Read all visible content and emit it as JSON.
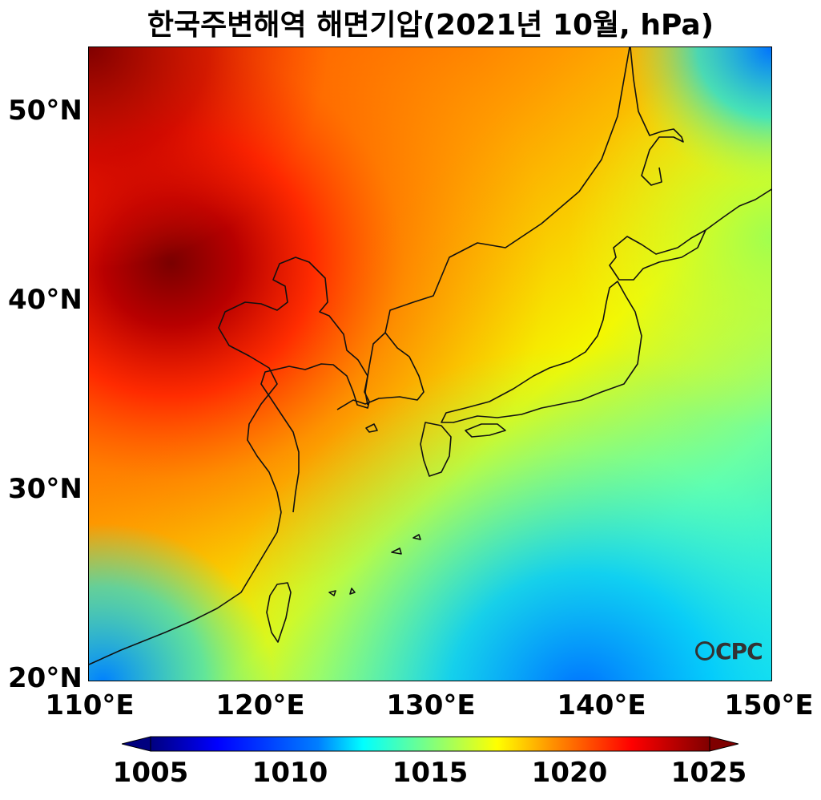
{
  "title": "한국주변해역 해면기압(2021년 10월, hPa)",
  "map": {
    "lon_range": [
      110,
      150
    ],
    "lat_range": [
      20,
      53.5
    ],
    "variable": "sea level pressure",
    "unit": "hPa"
  },
  "axes": {
    "lat_ticks": [
      "20°N",
      "30°N",
      "40°N",
      "50°N"
    ],
    "lon_ticks": [
      "110°E",
      "120°E",
      "130°E",
      "140°E",
      "150°E"
    ]
  },
  "colorbar": {
    "min": 1005,
    "max": 1025,
    "extend": "both",
    "ticks": [
      "1005",
      "1010",
      "1015",
      "1020",
      "1025"
    ],
    "colormap": [
      "#00007f",
      "#0000ff",
      "#007fff",
      "#00ffff",
      "#7fff7f",
      "#ffff00",
      "#ff7f00",
      "#ff0000",
      "#7f0000"
    ]
  },
  "logo": {
    "text": "CPC"
  }
}
